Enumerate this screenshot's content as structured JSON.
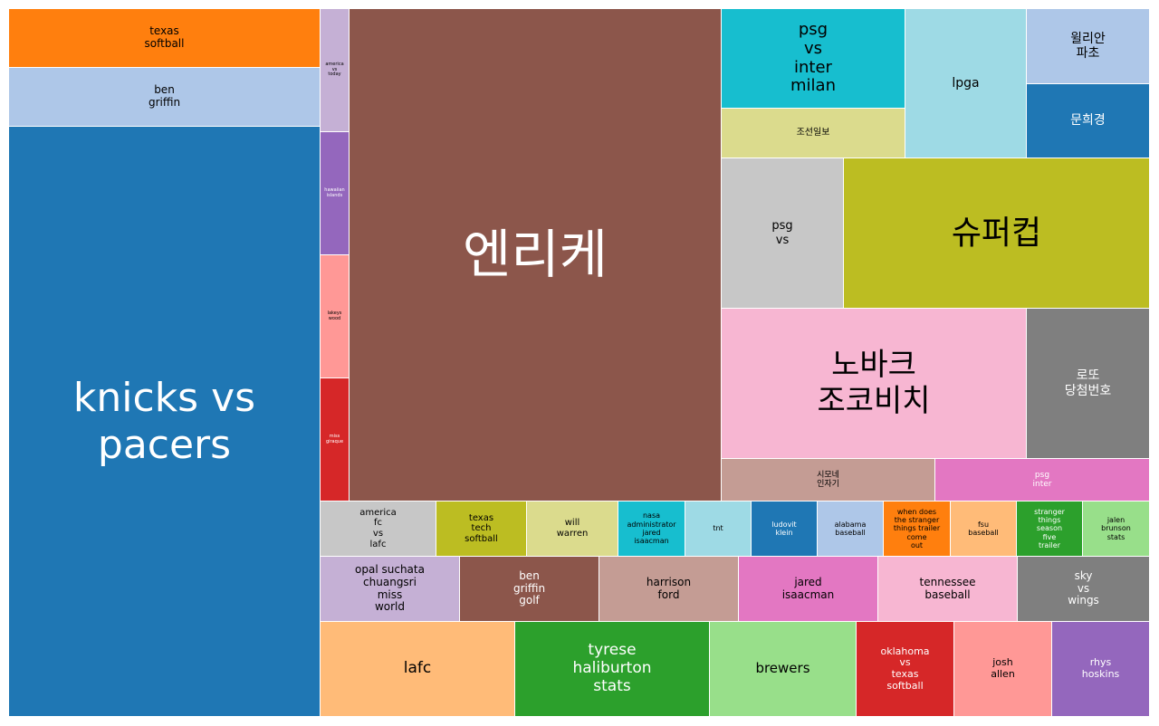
{
  "chart_data": {
    "type": "treemap",
    "title": "",
    "items": [
      {
        "label": "texas\nsoftball",
        "color": "#ff7f0e",
        "text_color": "#000000"
      },
      {
        "label": "ben\ngriffin",
        "color": "#aec7e8",
        "text_color": "#000000"
      },
      {
        "label": "knicks vs\npacers",
        "color": "#1f77b4",
        "text_color": "#ffffff"
      },
      {
        "label": "america\nvs\ntoday",
        "color": "#c5b0d5",
        "text_color": "#000000"
      },
      {
        "label": "hawaiian\nislands",
        "color": "#9467bd",
        "text_color": "#ffffff"
      },
      {
        "label": "lakeys\nwood",
        "color": "#ff9896",
        "text_color": "#000000"
      },
      {
        "label": "miss\ngiraque",
        "color": "#d62728",
        "text_color": "#ffffff"
      },
      {
        "label": "엔리케",
        "color": "#8c564b",
        "text_color": "#ffffff"
      },
      {
        "label": "psg\nvs\ninter\nmilan",
        "color": "#17becf",
        "text_color": "#000000"
      },
      {
        "label": "조선일보",
        "color": "#dbdb8d",
        "text_color": "#000000"
      },
      {
        "label": "lpga",
        "color": "#9edae5",
        "text_color": "#000000"
      },
      {
        "label": "윌리안\n파초",
        "color": "#aec7e8",
        "text_color": "#000000"
      },
      {
        "label": "문희경",
        "color": "#1f77b4",
        "text_color": "#ffffff"
      },
      {
        "label": "psg\nvs",
        "color": "#c7c7c7",
        "text_color": "#000000"
      },
      {
        "label": "슈퍼컵",
        "color": "#bcbd22",
        "text_color": "#000000"
      },
      {
        "label": "노바크\n조코비치",
        "color": "#f7b6d2",
        "text_color": "#000000"
      },
      {
        "label": "로또\n당첨번호",
        "color": "#7f7f7f",
        "text_color": "#ffffff"
      },
      {
        "label": "시모네\n인자기",
        "color": "#c49c94",
        "text_color": "#000000"
      },
      {
        "label": "psg\ninter",
        "color": "#e377c2",
        "text_color": "#ffffff"
      },
      {
        "label": "america\nfc\nvs\nlafc",
        "color": "#c7c7c7",
        "text_color": "#000000"
      },
      {
        "label": "texas\ntech\nsoftball",
        "color": "#bcbd22",
        "text_color": "#000000"
      },
      {
        "label": "will\nwarren",
        "color": "#dbdb8d",
        "text_color": "#000000"
      },
      {
        "label": "nasa\nadministrator\njared\nisaacman",
        "color": "#17becf",
        "text_color": "#000000"
      },
      {
        "label": "tnt",
        "color": "#9edae5",
        "text_color": "#000000"
      },
      {
        "label": "ludovit\nklein",
        "color": "#1f77b4",
        "text_color": "#ffffff"
      },
      {
        "label": "alabama\nbaseball",
        "color": "#aec7e8",
        "text_color": "#000000"
      },
      {
        "label": "when does\nthe stranger\nthings trailer\ncome\nout",
        "color": "#ff7f0e",
        "text_color": "#000000"
      },
      {
        "label": "fsu\nbaseball",
        "color": "#ffbb78",
        "text_color": "#000000"
      },
      {
        "label": "stranger\nthings\nseason\nfive\ntrailer",
        "color": "#2ca02c",
        "text_color": "#ffffff"
      },
      {
        "label": "jalen\nbrunson\nstats",
        "color": "#98df8a",
        "text_color": "#000000"
      },
      {
        "label": "opal suchata\nchuangsri\nmiss\nworld",
        "color": "#c5b0d5",
        "text_color": "#000000"
      },
      {
        "label": "ben\ngriffin\ngolf",
        "color": "#8c564b",
        "text_color": "#ffffff"
      },
      {
        "label": "harrison\nford",
        "color": "#c49c94",
        "text_color": "#000000"
      },
      {
        "label": "jared\nisaacman",
        "color": "#e377c2",
        "text_color": "#000000"
      },
      {
        "label": "tennessee\nbaseball",
        "color": "#f7b6d2",
        "text_color": "#000000"
      },
      {
        "label": "sky\nvs\nwings",
        "color": "#7f7f7f",
        "text_color": "#ffffff"
      },
      {
        "label": "lafc",
        "color": "#ffbb78",
        "text_color": "#000000"
      },
      {
        "label": "tyrese\nhaliburton\nstats",
        "color": "#2ca02c",
        "text_color": "#ffffff"
      },
      {
        "label": "brewers",
        "color": "#98df8a",
        "text_color": "#000000"
      },
      {
        "label": "oklahoma\nvs\ntexas\nsoftball",
        "color": "#d62728",
        "text_color": "#ffffff"
      },
      {
        "label": "josh\nallen",
        "color": "#ff9896",
        "text_color": "#000000"
      },
      {
        "label": "rhys\nhoskins",
        "color": "#9467bd",
        "text_color": "#ffffff"
      }
    ]
  }
}
